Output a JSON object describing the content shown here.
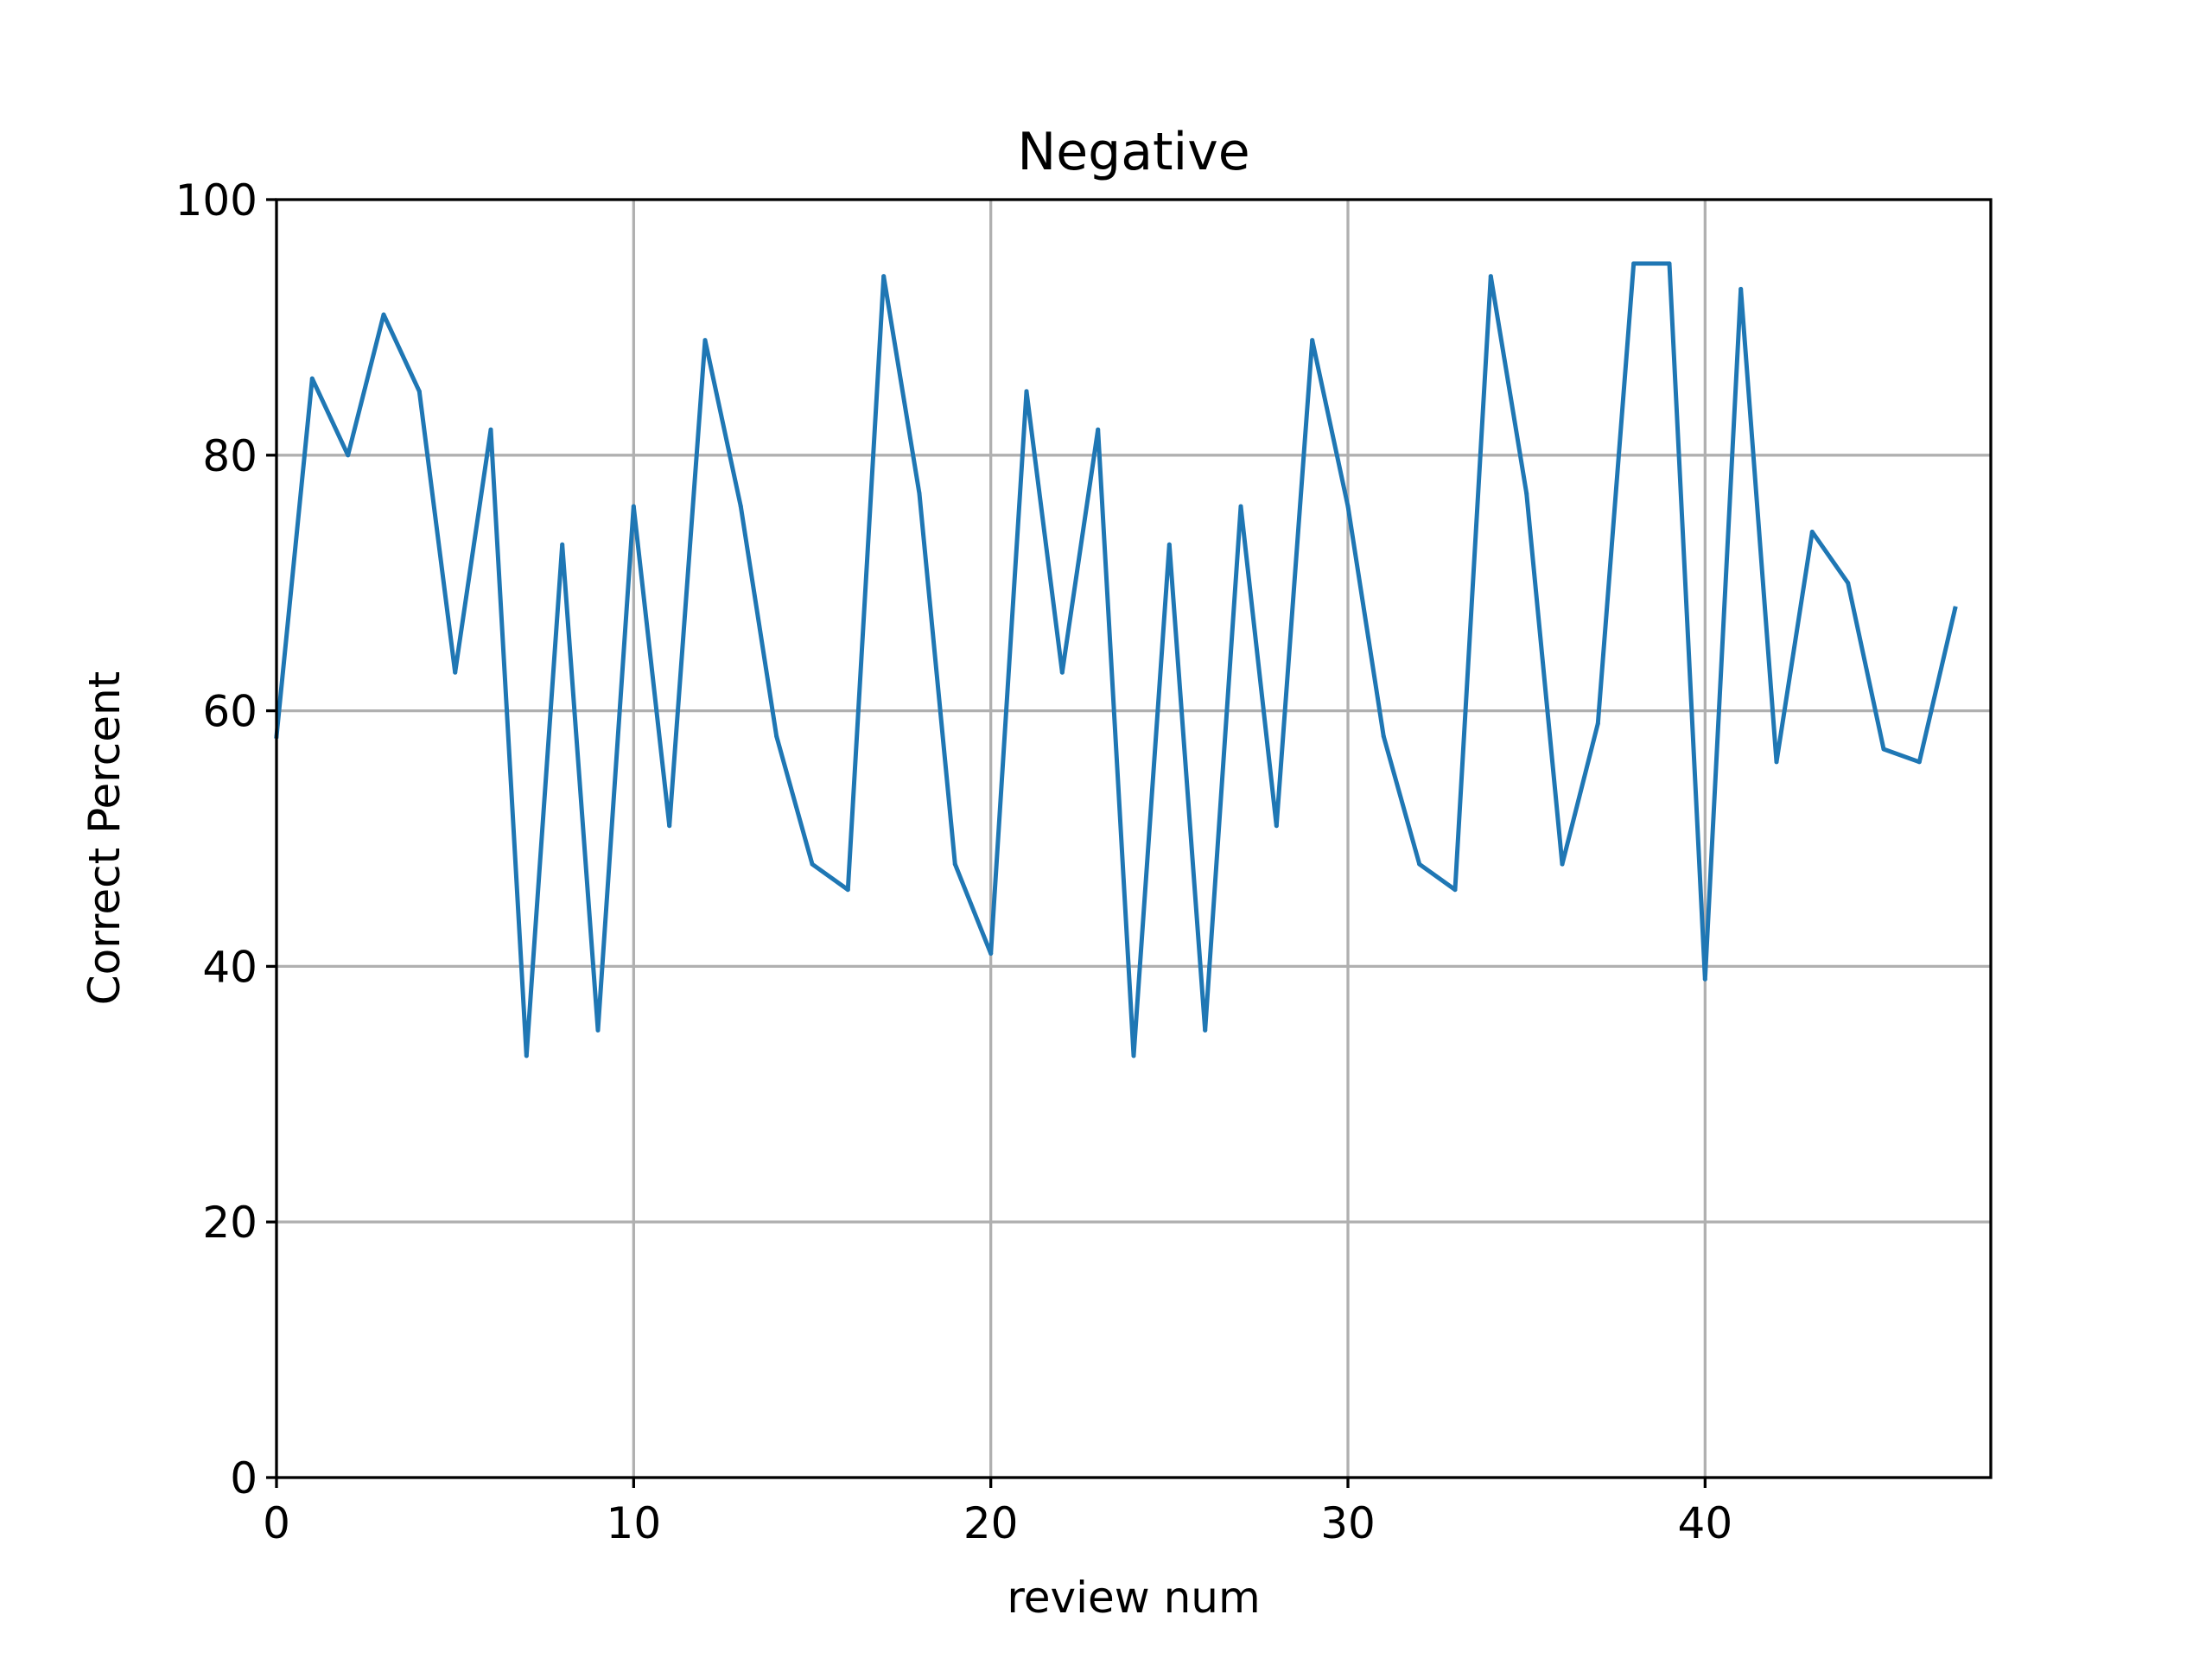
{
  "chart_data": {
    "type": "line",
    "title": "Negative",
    "xlabel": "review num",
    "ylabel": "Correct Percent",
    "xlim": [
      0,
      48
    ],
    "ylim": [
      0,
      100
    ],
    "xticks": [
      0,
      10,
      20,
      30,
      40
    ],
    "yticks": [
      0,
      20,
      40,
      60,
      80,
      100
    ],
    "xtick_labels": [
      "0",
      "10",
      "20",
      "30",
      "40"
    ],
    "ytick_labels": [
      "0",
      "20",
      "40",
      "60",
      "80",
      "100"
    ],
    "grid": true,
    "line_color": "#1f77b4",
    "series": [
      {
        "x": [
          0,
          1,
          2,
          3,
          4,
          5,
          6,
          7,
          8,
          9,
          10,
          11,
          12,
          13,
          14,
          15,
          16,
          17,
          18,
          19,
          20,
          21,
          22,
          23,
          24,
          25,
          26,
          27,
          28,
          29,
          30,
          31,
          32,
          33,
          34,
          35,
          36,
          37,
          38,
          39,
          40,
          41,
          42,
          43,
          44,
          45,
          46,
          47
        ],
        "values": [
          58,
          86,
          80,
          91,
          85,
          63,
          82,
          33,
          73,
          35,
          76,
          51,
          89,
          76,
          58,
          48,
          46,
          94,
          77,
          48,
          41,
          85,
          63,
          82,
          33,
          73,
          35,
          76,
          51,
          89,
          76,
          58,
          48,
          46,
          94,
          77,
          48,
          59,
          95,
          95,
          39,
          93,
          56,
          74,
          70,
          57,
          56,
          68
        ]
      }
    ]
  }
}
